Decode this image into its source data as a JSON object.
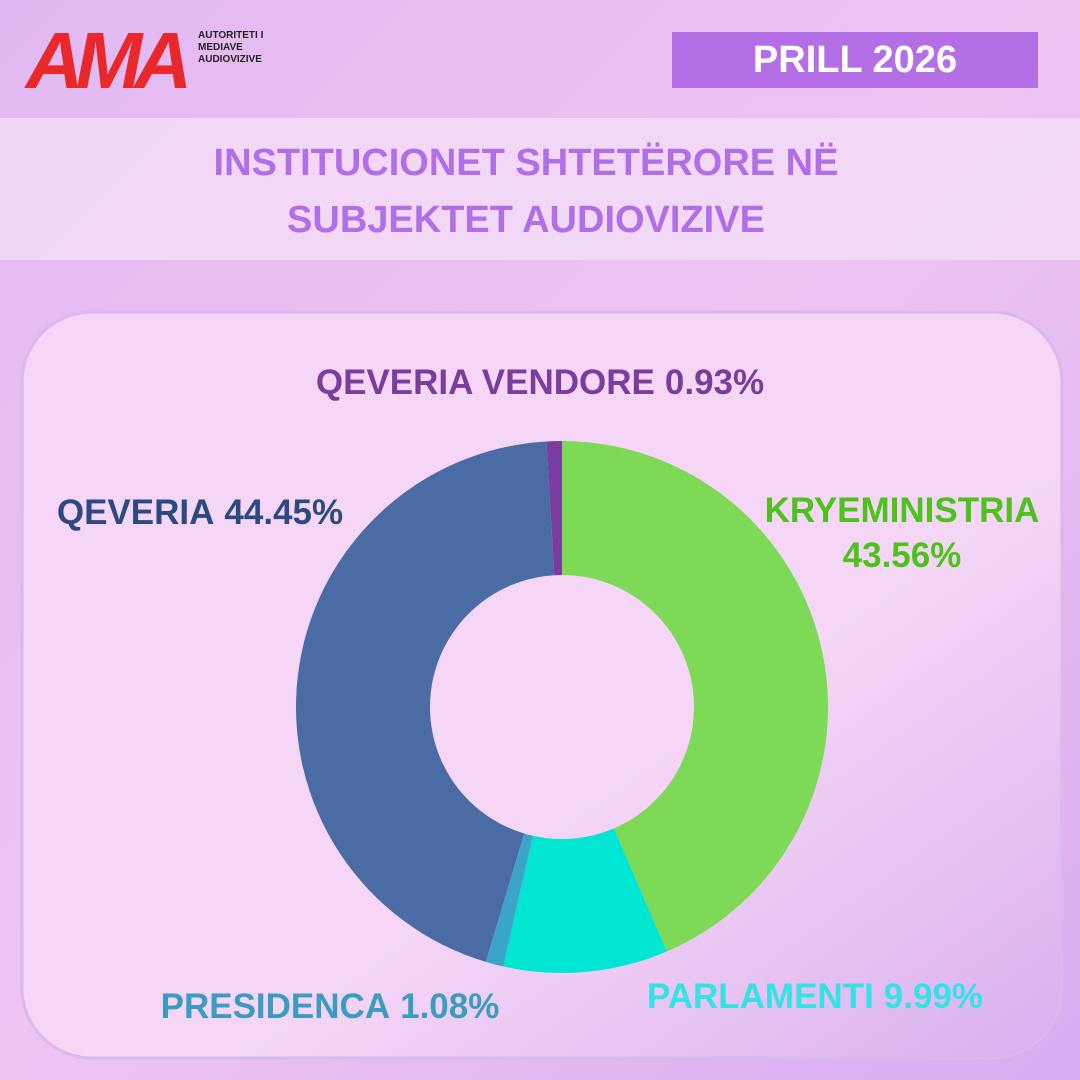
{
  "logo": {
    "mark": "AMA",
    "lines": [
      "AUTORITETI I",
      "MEDIAVE",
      "AUDIOVIZIVE"
    ]
  },
  "date": "PRILL 2026",
  "chart_data": {
    "type": "donut",
    "title": [
      "INSTITUCIONET SHTETËRORE NË",
      "SUBJEKTET AUDIOVIZIVE"
    ],
    "categories": [
      "KRYEMINISTRIA",
      "PARLAMENTI",
      "PRESIDENCA",
      "QEVERIA",
      "QEVERIA VENDORE"
    ],
    "values": [
      43.56,
      9.99,
      1.08,
      44.45,
      0.93
    ],
    "value_labels": [
      "43.56%",
      "9.99%",
      "1.08%",
      "44.45%",
      "0.93%"
    ],
    "colors": [
      "#7ed957",
      "#00e6d2",
      "#3aa5c8",
      "#4a6ba3",
      "#7a3d9e"
    ]
  }
}
